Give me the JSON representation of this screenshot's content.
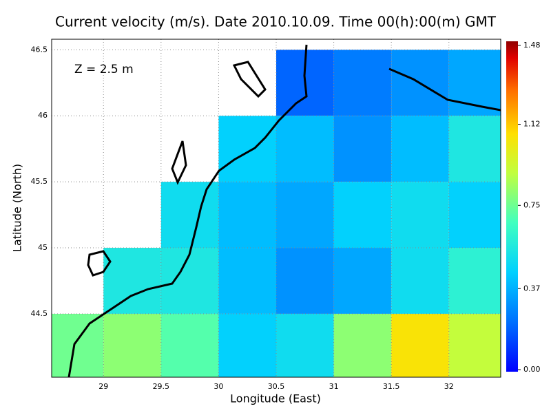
{
  "chart_data": {
    "type": "heatmap",
    "title": "Current velocity (m/s). Date 2010.10.09. Time 00(h):00(m) GMT",
    "annotation": "Z = 2.5 m",
    "xlabel": "Longitude (East)",
    "ylabel": "Latitude (North)",
    "xlim": [
      28.55,
      32.45
    ],
    "ylim": [
      44.02,
      46.58
    ],
    "xticks": [
      29,
      29.5,
      30,
      30.5,
      31,
      31.5,
      32
    ],
    "yticks": [
      44.5,
      45,
      45.5,
      46,
      46.5
    ],
    "grid": true,
    "lon": [
      28.75,
      29.25,
      29.75,
      30.25,
      30.75,
      31.25,
      31.75,
      32.25
    ],
    "lat": [
      46.25,
      45.75,
      45.25,
      44.75,
      44.25
    ],
    "speed": [
      [
        null,
        null,
        null,
        null,
        0.2,
        0.25,
        0.3,
        0.35
      ],
      [
        null,
        null,
        null,
        0.45,
        0.4,
        0.3,
        0.4,
        0.55
      ],
      [
        null,
        null,
        0.5,
        0.4,
        0.35,
        0.45,
        0.5,
        0.45
      ],
      [
        null,
        0.55,
        0.55,
        0.4,
        0.3,
        0.35,
        0.5,
        0.6
      ],
      [
        0.75,
        0.8,
        0.7,
        0.45,
        0.5,
        0.8,
        1.05,
        0.9
      ]
    ],
    "clim": [
      0,
      1.48
    ],
    "cticks": [
      {
        "value": 0,
        "label": "0.00"
      },
      0.37,
      0.75,
      1.12,
      1.48
    ]
  }
}
